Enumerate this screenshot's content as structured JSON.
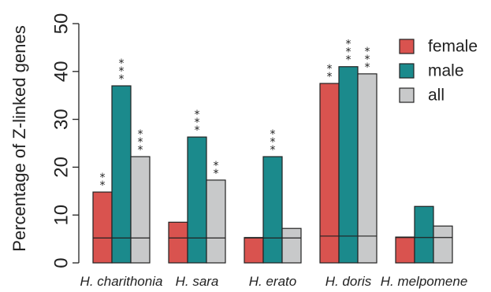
{
  "chart_data": {
    "type": "bar",
    "ylabel": "Percentage of Z-linked genes",
    "ylim": [
      0,
      50
    ],
    "yticks": [
      0,
      10,
      20,
      30,
      40,
      50
    ],
    "categories": [
      "H. charithonia",
      "H. sara",
      "H. erato",
      "H. doris",
      "H. melpomene"
    ],
    "series": [
      {
        "name": "female",
        "color": "#d9534f",
        "values": [
          14.8,
          8.5,
          5.3,
          37.5,
          5.4
        ],
        "expected": [
          5.2,
          5.2,
          5.2,
          5.6,
          5.3
        ],
        "stars": [
          "**",
          "",
          "",
          "**",
          ""
        ]
      },
      {
        "name": "male",
        "color": "#1b8a8c",
        "values": [
          37.0,
          26.3,
          22.2,
          41.0,
          11.8
        ],
        "expected": [
          5.2,
          5.2,
          5.2,
          5.6,
          5.3
        ],
        "stars": [
          "***",
          "***",
          "***",
          "***",
          ""
        ]
      },
      {
        "name": "all",
        "color": "#c8c9ca",
        "values": [
          22.2,
          17.3,
          7.2,
          39.5,
          7.7
        ],
        "expected": [
          5.2,
          5.2,
          5.2,
          5.6,
          5.3
        ],
        "stars": [
          "***",
          "**",
          "",
          "***",
          ""
        ]
      }
    ],
    "legend_position": "top-right",
    "grid": false
  }
}
